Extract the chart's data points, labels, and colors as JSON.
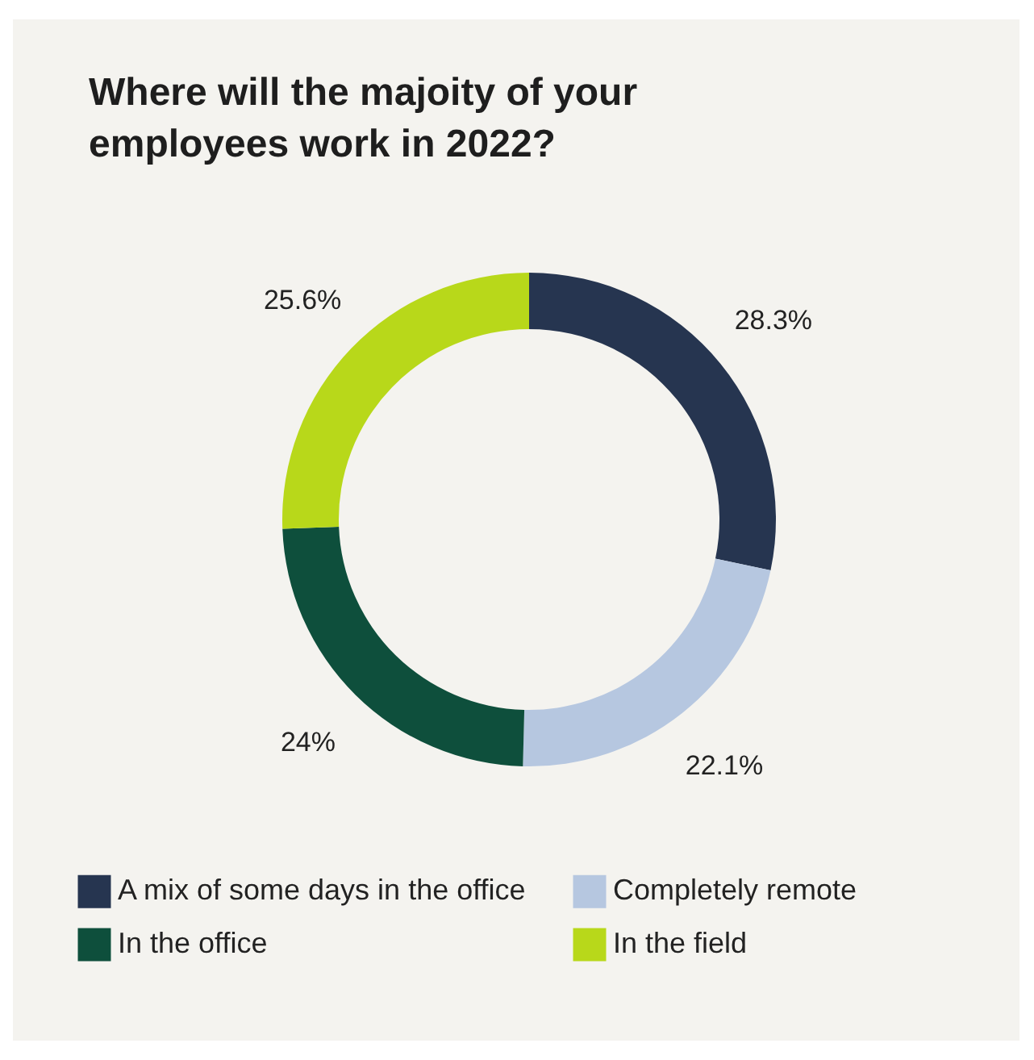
{
  "chart_data": {
    "type": "donut",
    "title": "Where will the majoity of your employees work in 2022?",
    "categories": [
      "A mix of some days in the office",
      "Completely remote",
      "In the office",
      "In the field"
    ],
    "values": [
      28.3,
      22.1,
      24,
      25.6
    ],
    "colors": [
      "#263550",
      "#b6c7e0",
      "#0e4f3c",
      "#b8d81a"
    ],
    "value_labels": [
      "28.3%",
      "22.1%",
      "24%",
      "25.6%"
    ],
    "legend": "bottom"
  }
}
